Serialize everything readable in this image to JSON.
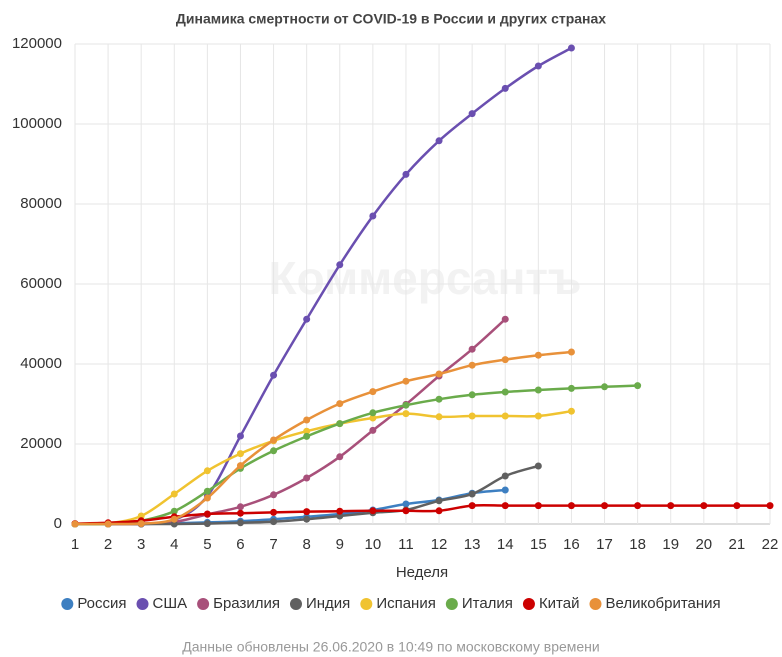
{
  "chart_data": {
    "type": "line",
    "title": "Динамика смертности от COVID-19 в России и других странах",
    "watermark": "Коммерсантъ",
    "x_label": "Неделя",
    "footnote": "Данные обновлены 26.06.2020 в 10:49 по московскому времени",
    "x": [
      1,
      2,
      3,
      4,
      5,
      6,
      7,
      8,
      9,
      10,
      11,
      12,
      13,
      14,
      15,
      16,
      17,
      18,
      19,
      20,
      21,
      22
    ],
    "xlim": [
      1,
      22
    ],
    "xticks": [
      1,
      2,
      3,
      4,
      5,
      6,
      7,
      8,
      9,
      10,
      11,
      12,
      13,
      14,
      15,
      16,
      17,
      18,
      19,
      20,
      21,
      22
    ],
    "ylim": [
      0,
      120000
    ],
    "yticks": [
      0,
      20000,
      40000,
      60000,
      80000,
      100000,
      120000
    ],
    "grid": true,
    "legend": "bottom",
    "series": [
      {
        "name": "Россия",
        "color": "#3d7fc1",
        "values": [
          0,
          0,
          0,
          200,
          400,
          700,
          1200,
          1800,
          2500,
          3500,
          5000,
          6000,
          7700,
          8500,
          null,
          null,
          null,
          null,
          null,
          null,
          null,
          null
        ]
      },
      {
        "name": "США",
        "color": "#6a4fb0",
        "values": [
          0,
          0,
          100,
          1000,
          7000,
          22000,
          37200,
          51200,
          64800,
          77000,
          87400,
          95800,
          102600,
          108900,
          114500,
          119000,
          null,
          null,
          null,
          null,
          null,
          null
        ]
      },
      {
        "name": "Бразилия",
        "color": "#a8507a",
        "values": [
          0,
          0,
          0,
          500,
          2400,
          4300,
          7300,
          11500,
          16800,
          23400,
          29900,
          37000,
          43700,
          51200,
          null,
          null,
          null,
          null,
          null,
          null,
          null,
          null
        ]
      },
      {
        "name": "Индия",
        "color": "#606060",
        "values": [
          0,
          0,
          0,
          0,
          100,
          300,
          600,
          1200,
          2000,
          2800,
          3500,
          5800,
          7500,
          12000,
          14500,
          null,
          null,
          null,
          null,
          null,
          null,
          null
        ]
      },
      {
        "name": "Испания",
        "color": "#f0c330",
        "values": [
          0,
          200,
          2000,
          7500,
          13300,
          17600,
          20800,
          23200,
          25100,
          26500,
          27600,
          26800,
          27000,
          27000,
          27000,
          28200,
          null,
          null,
          null,
          null,
          null,
          null
        ]
      },
      {
        "name": "Италия",
        "color": "#6aab4b",
        "values": [
          0,
          0,
          800,
          3200,
          8200,
          13900,
          18300,
          21900,
          25100,
          27800,
          29700,
          31200,
          32300,
          33000,
          33500,
          33900,
          34300,
          34600,
          null,
          null,
          null,
          null
        ]
      },
      {
        "name": "Китай",
        "color": "#cc0000",
        "values": [
          100,
          300,
          800,
          1800,
          2500,
          2700,
          2900,
          3100,
          3200,
          3300,
          3300,
          3300,
          4600,
          4600,
          4600,
          4600,
          4600,
          4600,
          4600,
          4600,
          4600,
          4600
        ]
      },
      {
        "name": "Великобритания",
        "color": "#e8913a",
        "values": [
          0,
          0,
          100,
          1200,
          6500,
          14600,
          21000,
          26000,
          30100,
          33100,
          35700,
          37500,
          39700,
          41100,
          42200,
          43000,
          null,
          null,
          null,
          null,
          null,
          null
        ]
      }
    ]
  }
}
